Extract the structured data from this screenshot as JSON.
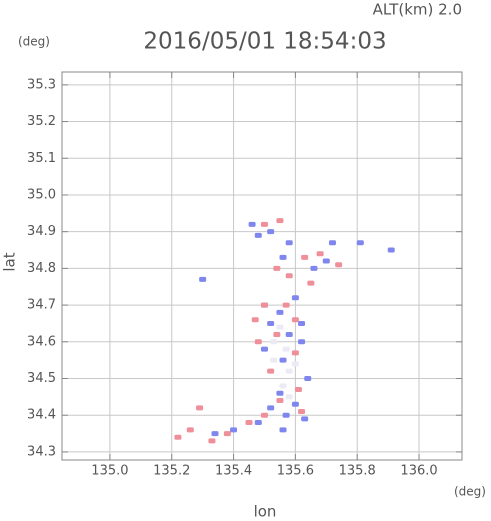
{
  "chart_data": {
    "type": "scatter",
    "title": "2016/05/01 18:54:03",
    "subtitle": "ALT(km) 2.0",
    "x_label": "lon",
    "y_label": "lat",
    "x_unit": "(deg)",
    "y_unit": "(deg)",
    "xlim": [
      134.845,
      136.139
    ],
    "ylim": [
      34.278,
      35.335
    ],
    "xticks": [
      {
        "value": 135.0,
        "label": "135.0"
      },
      135.2,
      135.4,
      135.6,
      135.8,
      {
        "value": 136.0,
        "label": "136.0"
      }
    ],
    "yticks": [
      34.3,
      34.4,
      34.5,
      34.6,
      34.7,
      34.8,
      34.9,
      {
        "value": 35.0,
        "label": "35.0"
      },
      35.1,
      35.2,
      35.3
    ],
    "grid": true,
    "series": [
      {
        "color": "#eceaf4",
        "x": [
          135.55,
          135.57,
          135.53,
          135.58,
          135.56,
          135.53,
          135.6,
          135.58
        ],
        "y": [
          34.64,
          34.58,
          34.55,
          34.52,
          34.48,
          34.6,
          34.54,
          34.45
        ]
      },
      {
        "color": "#7f86ee",
        "x": [
          135.46,
          135.48,
          135.58,
          135.72,
          135.81,
          135.56,
          135.7,
          135.91,
          135.3,
          135.6,
          135.55,
          135.52,
          135.58,
          135.62,
          135.5,
          135.56,
          135.64,
          135.55,
          135.6,
          135.52,
          135.57,
          135.63,
          135.48,
          135.4,
          135.34,
          135.56,
          135.62,
          135.5,
          135.66,
          135.52
        ],
        "y": [
          34.92,
          34.89,
          34.87,
          34.87,
          34.87,
          34.83,
          34.82,
          34.85,
          34.77,
          34.72,
          34.68,
          34.65,
          34.62,
          34.6,
          34.58,
          34.55,
          34.5,
          34.46,
          34.43,
          34.42,
          34.4,
          34.39,
          34.38,
          34.36,
          34.35,
          34.36,
          34.65,
          34.7,
          34.8,
          34.9
        ]
      },
      {
        "color": "#ee8f99",
        "x": [
          135.5,
          135.55,
          135.63,
          135.68,
          135.74,
          135.54,
          135.5,
          135.57,
          135.47,
          135.6,
          135.54,
          135.48,
          135.6,
          135.52,
          135.61,
          135.55,
          135.5,
          135.62,
          135.45,
          135.38,
          135.26,
          135.29,
          135.22,
          135.33,
          135.65,
          135.58
        ],
        "y": [
          34.92,
          34.93,
          34.83,
          34.84,
          34.81,
          34.8,
          34.7,
          34.7,
          34.66,
          34.66,
          34.62,
          34.6,
          34.57,
          34.52,
          34.47,
          34.44,
          34.4,
          34.41,
          34.38,
          34.35,
          34.36,
          34.42,
          34.34,
          34.33,
          34.76,
          34.78
        ]
      }
    ]
  }
}
